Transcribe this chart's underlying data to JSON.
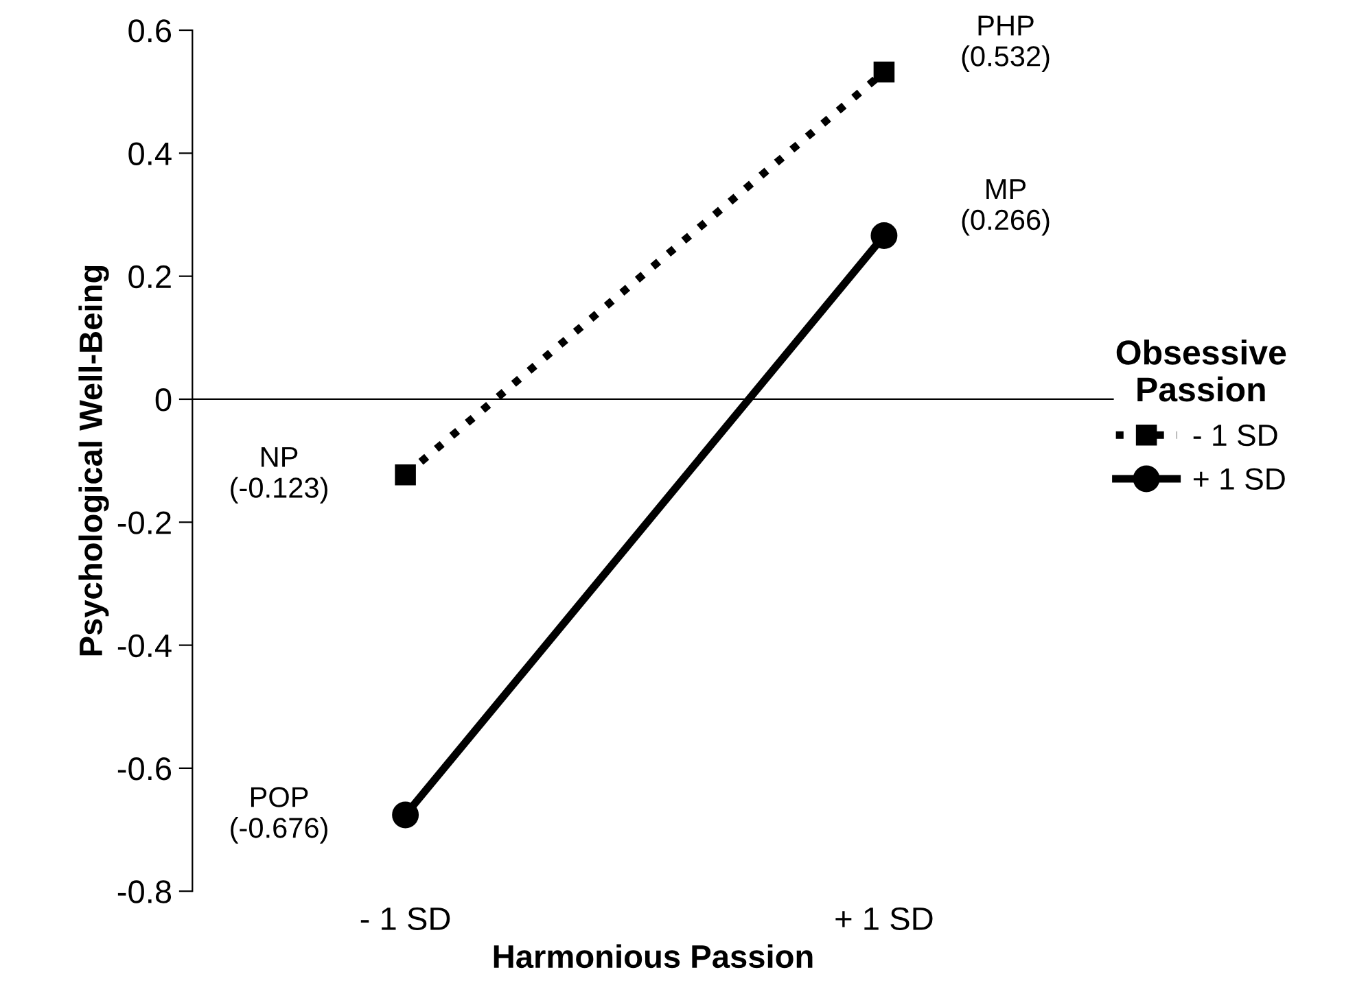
{
  "chart_data": {
    "type": "line",
    "xlabel": "Harmonious Passion",
    "ylabel": "Psychological Well-Being",
    "legend_title": "Obsessive\nPassion",
    "legend": "right",
    "categories": [
      "- 1 SD",
      "+ 1 SD"
    ],
    "series": [
      {
        "name": "- 1 SD",
        "color": "#000000",
        "values": [
          -0.123,
          0.532
        ],
        "marker": "square",
        "line_style": "dotted"
      },
      {
        "name": "+ 1 SD",
        "color": "#000000",
        "values": [
          -0.676,
          0.266
        ],
        "marker": "circle",
        "line_style": "solid"
      }
    ],
    "ylim": [
      -0.8,
      0.6
    ],
    "yticks": [
      -0.8,
      -0.6,
      -0.4,
      -0.2,
      0,
      0.2,
      0.4,
      0.6
    ],
    "grid": false,
    "ref_lines": [
      {
        "axis": "y",
        "value": 0,
        "label": null,
        "color": "#000000"
      }
    ],
    "annotations": [
      {
        "text": "NP\n(-0.123)",
        "x": "- 1 SD",
        "y": -0.123
      },
      {
        "text": "PHP\n(0.532)",
        "x": "+ 1 SD",
        "y": 0.532
      },
      {
        "text": "MP\n(0.266)",
        "x": "+ 1 SD",
        "y": 0.266
      },
      {
        "text": "POP\n(-0.676)",
        "x": "- 1 SD",
        "y": -0.676
      }
    ]
  }
}
